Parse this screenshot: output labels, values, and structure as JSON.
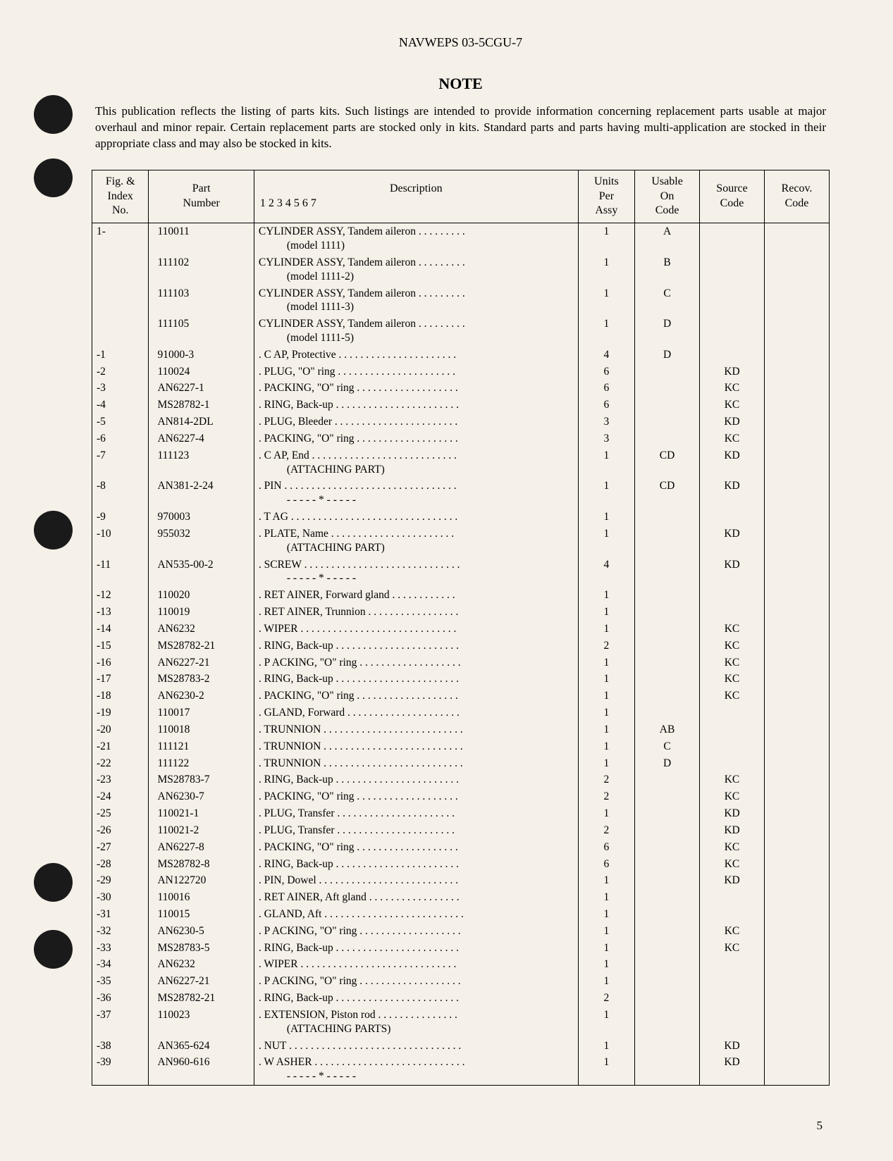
{
  "doc_header": "NAVWEPS 03-5CGU-7",
  "note_title": "NOTE",
  "note_text": "This publication reflects the listing of parts kits. Such listings are intended to provide information concerning replacement parts usable at major overhaul and minor repair. Certain replacement parts are stocked only in kits. Standard parts and parts having multi-application are stocked in their appropriate class and may also be stocked in kits.",
  "page_number": "5",
  "table": {
    "headers": {
      "fig_index": "Fig. &\nIndex\nNo.",
      "part": "Part\nNumber",
      "description": "Description",
      "desc_sub": "1  2  3  4  5  6  7",
      "units": "Units\nPer\nAssy",
      "usable": "Usable\nOn\nCode",
      "source": "Source\nCode",
      "recov": "Recov.\nCode"
    },
    "rows": [
      {
        "idx": "1-",
        "part": "110011",
        "desc": "CYLINDER ASSY, Tandem aileron . . . . . . . . .",
        "desc2": "(model 1111)",
        "units": "1",
        "usable": "A",
        "source": "",
        "recov": ""
      },
      {
        "idx": "",
        "part": "111102",
        "desc": "CYLINDER ASSY, Tandem aileron . . . . . . . . .",
        "desc2": "(model 1111-2)",
        "units": "1",
        "usable": "B",
        "source": "",
        "recov": ""
      },
      {
        "idx": "",
        "part": "111103",
        "desc": "CYLINDER ASSY, Tandem aileron . . . . . . . . .",
        "desc2": "(model 1111-3)",
        "units": "1",
        "usable": "C",
        "source": "",
        "recov": ""
      },
      {
        "idx": "",
        "part": "111105",
        "desc": "CYLINDER ASSY, Tandem aileron . . . . . . . . .",
        "desc2": "(model 1111-5)",
        "units": "1",
        "usable": "D",
        "source": "",
        "recov": ""
      },
      {
        "idx": "-1",
        "part": "91000-3",
        "desc": ".  C AP, Protective  . . . . . . . . . . . . . . . . . . . . . .",
        "units": "4",
        "usable": "D",
        "source": "",
        "recov": ""
      },
      {
        "idx": "-2",
        "part": "110024",
        "desc": ".  PLUG, \"O\" ring  . . . . . . . . . . . . . . . . . . . . . .",
        "units": "6",
        "usable": "",
        "source": "KD",
        "recov": ""
      },
      {
        "idx": "-3",
        "part": "AN6227-1",
        "desc": ".  PACKING, \"O\" ring . . . . . . . . . . . . . . . . . . .",
        "units": "6",
        "usable": "",
        "source": "KC",
        "recov": ""
      },
      {
        "idx": "-4",
        "part": "MS28782-1",
        "desc": ".  RING, Back-up . . . . . . . . . . . . . . . . . . . . . . .",
        "units": "6",
        "usable": "",
        "source": "KC",
        "recov": ""
      },
      {
        "idx": "-5",
        "part": "AN814-2DL",
        "desc": ".  PLUG, Bleeder . . . . . . . . . . . . . . . . . . . . . . .",
        "units": "3",
        "usable": "",
        "source": "KD",
        "recov": ""
      },
      {
        "idx": "-6",
        "part": "AN6227-4",
        "desc": ".  PACKING, \"O\" ring . . . . . . . . . . . . . . . . . . .",
        "units": "3",
        "usable": "",
        "source": "KC",
        "recov": ""
      },
      {
        "idx": "-7",
        "part": "111123",
        "desc": ".  C AP, End . . . . . . . . . . . . . . . . . . . . . . . . . . .",
        "desc2": "(ATTACHING PART)",
        "units": "1",
        "usable": "CD",
        "source": "KD",
        "recov": ""
      },
      {
        "idx": "-8",
        "part": "AN381-2-24",
        "desc": ".  PIN . . . . . . . . . . . . . . . . . . . . . . . . . . . . . . . .",
        "desc2": "- - - - - * - - - - -",
        "units": "1",
        "usable": "CD",
        "source": "KD",
        "recov": ""
      },
      {
        "idx": "-9",
        "part": "970003",
        "desc": ".  T AG . . . . . . . . . . . . . . . . . . . . . . . . . . . . . . .",
        "units": "1",
        "usable": "",
        "source": "",
        "recov": ""
      },
      {
        "idx": "-10",
        "part": "955032",
        "desc": ".  PLATE, Name  . . . . . . . . . . . . . . . . . . . . . . .",
        "desc2": "(ATTACHING PART)",
        "units": "1",
        "usable": "",
        "source": "KD",
        "recov": ""
      },
      {
        "idx": "-11",
        "part": "AN535-00-2",
        "desc": ".  SCREW . . . . . . . . . . . . . . . . . . . . . . . . . . . . .",
        "desc2": "- - - - - * - - - - -",
        "units": "4",
        "usable": "",
        "source": "KD",
        "recov": ""
      },
      {
        "idx": "-12",
        "part": "110020",
        "desc": ".  RET AINER, Forward gland . . . . . . . . . . . .",
        "units": "1",
        "usable": "",
        "source": "",
        "recov": ""
      },
      {
        "idx": "-13",
        "part": "110019",
        "desc": ".  RET AINER, Trunnion . . . . . . . . . . . . . . . . .",
        "units": "1",
        "usable": "",
        "source": "",
        "recov": ""
      },
      {
        "idx": "-14",
        "part": "AN6232",
        "desc": ".  WIPER  . . . . . . . . . . . . . . . . . . . . . . . . . . . . .",
        "units": "1",
        "usable": "",
        "source": "KC",
        "recov": ""
      },
      {
        "idx": "-15",
        "part": "MS28782-21",
        "desc": ".  RING, Back-up . . . . . . . . . . . . . . . . . . . . . . .",
        "units": "2",
        "usable": "",
        "source": "KC",
        "recov": ""
      },
      {
        "idx": "-16",
        "part": "AN6227-21",
        "desc": ".  P ACKING, \"O\" ring . . . . . . . . . . . . . . . . . . .",
        "units": "1",
        "usable": "",
        "source": "KC",
        "recov": ""
      },
      {
        "idx": "-17",
        "part": "MS28783-2",
        "desc": ".  RING, Back-up . . . . . . . . . . . . . . . . . . . . . . .",
        "units": "1",
        "usable": "",
        "source": "KC",
        "recov": ""
      },
      {
        "idx": "-18",
        "part": "AN6230-2",
        "desc": ".  PACKING, \"O\" ring . . . . . . . . . . . . . . . . . . .",
        "units": "1",
        "usable": "",
        "source": "KC",
        "recov": ""
      },
      {
        "idx": "-19",
        "part": "110017",
        "desc": ".  GLAND, Forward . . . . . . . . . . . . . . . . . . . . .",
        "units": "1",
        "usable": "",
        "source": "",
        "recov": ""
      },
      {
        "idx": "-20",
        "part": "110018",
        "desc": ".  TRUNNION . . . . . . . . . . . . . . . . . . . . . . . . . .",
        "units": "1",
        "usable": "AB",
        "source": "",
        "recov": ""
      },
      {
        "idx": "-21",
        "part": "111121",
        "desc": ".  TRUNNION . . . . . . . . . . . . . . . . . . . . . . . . . .",
        "units": "1",
        "usable": "C",
        "source": "",
        "recov": ""
      },
      {
        "idx": "-22",
        "part": "111122",
        "desc": ".  TRUNNION . . . . . . . . . . . . . . . . . . . . . . . . . .",
        "units": "1",
        "usable": "D",
        "source": "",
        "recov": ""
      },
      {
        "idx": "-23",
        "part": "MS28783-7",
        "desc": ".  RING, Back-up . . . . . . . . . . . . . . . . . . . . . . .",
        "units": "2",
        "usable": "",
        "source": "KC",
        "recov": ""
      },
      {
        "idx": "-24",
        "part": "AN6230-7",
        "desc": ".  PACKING, \"O\" ring . . . . . . . . . . . . . . . . . . .",
        "units": "2",
        "usable": "",
        "source": "KC",
        "recov": ""
      },
      {
        "idx": "-25",
        "part": "110021-1",
        "desc": ".  PLUG, Transfer . . . . . . . . . . . . . . . . . . . . . .",
        "units": "1",
        "usable": "",
        "source": "KD",
        "recov": ""
      },
      {
        "idx": "-26",
        "part": "110021-2",
        "desc": ".  PLUG, Transfer . . . . . . . . . . . . . . . . . . . . . .",
        "units": "2",
        "usable": "",
        "source": "KD",
        "recov": ""
      },
      {
        "idx": "-27",
        "part": "AN6227-8",
        "desc": ".  PACKING, \"O\" ring . . . . . . . . . . . . . . . . . . .",
        "units": "6",
        "usable": "",
        "source": "KC",
        "recov": ""
      },
      {
        "idx": "-28",
        "part": "MS28782-8",
        "desc": ".  RING, Back-up . . . . . . . . . . . . . . . . . . . . . . .",
        "units": "6",
        "usable": "",
        "source": "KC",
        "recov": ""
      },
      {
        "idx": "-29",
        "part": "AN122720",
        "desc": ".  PIN, Dowel . . . . . . . . . . . . . . . . . . . . . . . . . .",
        "units": "1",
        "usable": "",
        "source": "KD",
        "recov": ""
      },
      {
        "idx": "-30",
        "part": "110016",
        "desc": ".  RET AINER, Aft gland . . . . . . . . . . . . . . . . .",
        "units": "1",
        "usable": "",
        "source": "",
        "recov": ""
      },
      {
        "idx": "-31",
        "part": "110015",
        "desc": ".  GLAND, Aft . . . . . . . . . . . . . . . . . . . . . . . . . .",
        "units": "1",
        "usable": "",
        "source": "",
        "recov": ""
      },
      {
        "idx": "-32",
        "part": "AN6230-5",
        "desc": ".  P ACKING, \"O\" ring . . . . . . . . . . . . . . . . . . .",
        "units": "1",
        "usable": "",
        "source": "KC",
        "recov": ""
      },
      {
        "idx": "-33",
        "part": "MS28783-5",
        "desc": ".  RING, Back-up . . . . . . . . . . . . . . . . . . . . . . .",
        "units": "1",
        "usable": "",
        "source": "KC",
        "recov": ""
      },
      {
        "idx": "-34",
        "part": "AN6232",
        "desc": ".  WIPER  . . . . . . . . . . . . . . . . . . . . . . . . . . . . .",
        "units": "1",
        "usable": "",
        "source": "",
        "recov": ""
      },
      {
        "idx": "-35",
        "part": "AN6227-21",
        "desc": ".  P ACKING, \"O\" ring . . . . . . . . . . . . . . . . . . .",
        "units": "1",
        "usable": "",
        "source": "",
        "recov": ""
      },
      {
        "idx": "-36",
        "part": "MS28782-21",
        "desc": ".  RING, Back-up . . . . . . . . . . . . . . . . . . . . . . .",
        "units": "2",
        "usable": "",
        "source": "",
        "recov": ""
      },
      {
        "idx": "-37",
        "part": "110023",
        "desc": ".  EXTENSION, Piston rod . . . . . . . . . . . . . . .",
        "desc2": "(ATTACHING PARTS)",
        "units": "1",
        "usable": "",
        "source": "",
        "recov": ""
      },
      {
        "idx": "-38",
        "part": "AN365-624",
        "desc": ".  NUT . . . . . . . . . . . . . . . . . . . . . . . . . . . . . . . .",
        "units": "1",
        "usable": "",
        "source": "KD",
        "recov": ""
      },
      {
        "idx": "-39",
        "part": "AN960-616",
        "desc": ".  W ASHER . . . . . . . . . . . . . . . . . . . . . . . . . . . .",
        "desc2": "- - - - - * - - - - -",
        "units": "1",
        "usable": "",
        "source": "KD",
        "recov": ""
      }
    ]
  }
}
